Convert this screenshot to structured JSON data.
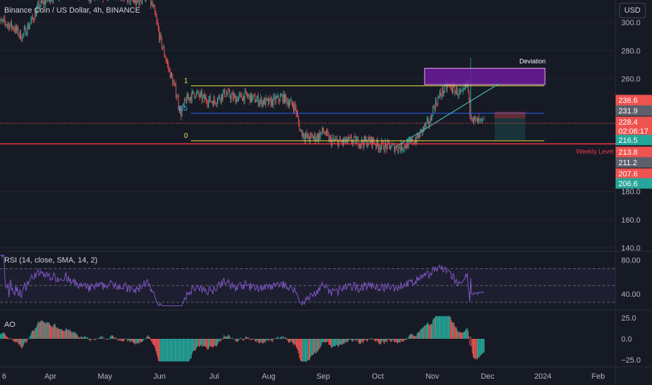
{
  "header": {
    "title": "Binance Coin / US Dollar, 4h, BINANCE",
    "currency_button": "USD"
  },
  "colors": {
    "background": "#161a25",
    "up": "#26a69a",
    "down": "#ef5350",
    "fib_level": "#f0e442",
    "fib_mid": "#2962ff",
    "weekly": "#f23645",
    "deviation_fill": "#6a1b9a",
    "deviation_border": "#ce93d8",
    "rsi": "#7e57c2",
    "trendline": "#4db6ac",
    "grid": "#232632",
    "axis_text": "#b2b5be"
  },
  "chart_data": [
    {
      "type": "candlestick",
      "title": "Binance Coin / US Dollar, 4h, BINANCE",
      "x_ticks": [
        "6",
        "Apr",
        "May",
        "Jun",
        "Jul",
        "Aug",
        "Sep",
        "Oct",
        "Nov",
        "Dec",
        "2024",
        "Feb"
      ],
      "y_ticks": [
        140.0,
        160.0,
        180.0,
        260.0,
        280.0,
        300.0
      ],
      "y_tick_labels": [
        "140.0",
        "160.0",
        "180.0",
        "260.0",
        "280.0",
        "300.0"
      ],
      "ylim": [
        138,
        316
      ],
      "price_path": [
        [
          "6",
          300
        ],
        [
          "Mar 11",
          297
        ],
        [
          "Mar 16",
          290
        ],
        [
          "Mar 21",
          300
        ],
        [
          "Mar 26",
          312
        ],
        [
          "Apr",
          318
        ],
        [
          "Apr 8",
          322
        ],
        [
          "Apr 15",
          321
        ],
        [
          "Apr 22",
          318
        ],
        [
          "May",
          320
        ],
        [
          "May 6",
          322
        ],
        [
          "May 12",
          318
        ],
        [
          "May 18",
          314
        ],
        [
          "May 24",
          320
        ],
        [
          "May 28",
          308
        ],
        [
          "Jun",
          290
        ],
        [
          "Jun 5",
          268
        ],
        [
          "Jun 10",
          248
        ],
        [
          "Jun 12",
          235
        ],
        [
          "Jun 15",
          245
        ],
        [
          "Jun 20",
          250
        ],
        [
          "Jun 25",
          246
        ],
        [
          "Jul",
          244
        ],
        [
          "Jul 6",
          250
        ],
        [
          "Jul 12",
          246
        ],
        [
          "Jul 18",
          248
        ],
        [
          "Jul 24",
          245
        ],
        [
          "Aug",
          243
        ],
        [
          "Aug 8",
          247
        ],
        [
          "Aug 15",
          240
        ],
        [
          "Aug 18",
          223
        ],
        [
          "Aug 22",
          218
        ],
        [
          "Aug 28",
          219
        ],
        [
          "Sep",
          223
        ],
        [
          "Sep 4",
          216
        ],
        [
          "Sep 10",
          215
        ],
        [
          "Sep 16",
          216
        ],
        [
          "Sep 22",
          215
        ],
        [
          "Sep 28",
          216
        ],
        [
          "Oct",
          213
        ],
        [
          "Oct 6",
          212
        ],
        [
          "Oct 12",
          211
        ],
        [
          "Oct 18",
          214
        ],
        [
          "Oct 22",
          217
        ],
        [
          "Oct 26",
          225
        ],
        [
          "Oct 30",
          230
        ],
        [
          "Nov",
          238
        ],
        [
          "Nov 5",
          250
        ],
        [
          "Nov 9",
          255
        ],
        [
          "Nov 13",
          252
        ],
        [
          "Nov 17",
          248
        ],
        [
          "Nov 20",
          258
        ],
        [
          "Nov 21",
          238
        ],
        [
          "Nov 24",
          230
        ],
        [
          "Nov 28",
          229
        ],
        [
          "Dec",
          228
        ]
      ],
      "price_labels": [
        {
          "text": "236.6",
          "kind": "down"
        },
        {
          "text": "231.9",
          "kind": "gray"
        },
        {
          "text": "228.4",
          "sub": "02:06:17",
          "kind": "down"
        },
        {
          "text": "216.5",
          "kind": "up"
        },
        {
          "text": "213.8",
          "kind": "down"
        },
        {
          "text": "211.2",
          "kind": "gray"
        },
        {
          "text": "207.6",
          "kind": "down"
        },
        {
          "text": "206.6",
          "kind": "up"
        }
      ],
      "drawings": {
        "fib_top_label": "1",
        "fib_mid_label": "0.5",
        "fib_bottom_label": "0",
        "deviation_label": "Deviation",
        "weekly_label": "Weekly Level"
      }
    },
    {
      "type": "line",
      "name": "RSI (14, close, SMA, 14, 2)",
      "y_ticks": [
        40.0,
        80.0
      ],
      "y_tick_labels": [
        "40.00",
        "80.00"
      ],
      "ylim": [
        25,
        88
      ],
      "bands": [
        30,
        50,
        70
      ]
    },
    {
      "type": "bar",
      "name": "AO",
      "y_ticks": [
        25.0,
        0.0,
        -25.0
      ],
      "y_tick_labels": [
        "25.0",
        "0.0",
        "−25.0"
      ],
      "ylim": [
        -30,
        30
      ]
    }
  ]
}
